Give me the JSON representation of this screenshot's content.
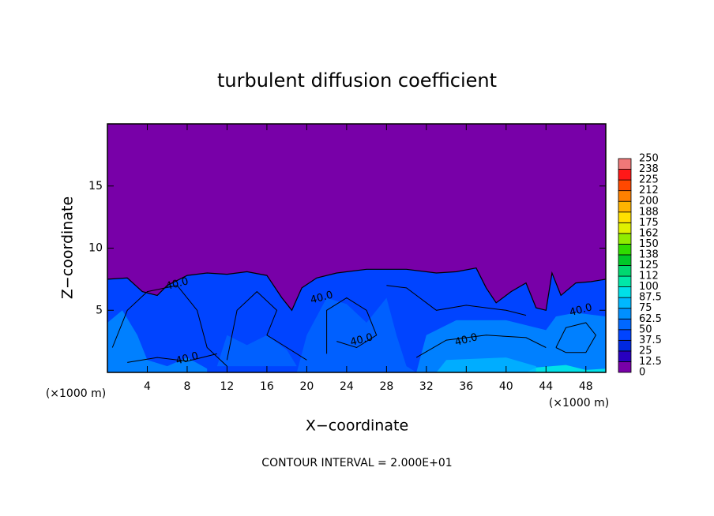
{
  "chart_data": {
    "type": "contour",
    "title": "turbulent diffusion coefficient",
    "xlabel": "X−coordinate",
    "ylabel": "Z−coordinate",
    "x_unit": "(×1000 m)",
    "x_unit_right": "(×1000 m)",
    "footer": "CONTOUR INTERVAL = 2.000E+01",
    "xlim": [
      0,
      50
    ],
    "ylim": [
      0,
      20
    ],
    "xticks": [
      4,
      8,
      12,
      16,
      20,
      24,
      28,
      32,
      36,
      40,
      44,
      48
    ],
    "yticks": [
      5,
      10,
      15
    ],
    "contour_labels": [
      "40.0",
      "40.0",
      "40.0",
      "40.0",
      "40.0",
      "40.0"
    ],
    "colorbar": {
      "ticks": [
        0,
        12.5,
        25,
        37.5,
        50,
        62.5,
        75,
        87.5,
        100,
        {
          "value": 112.5,
          "label": "112"
        },
        125,
        {
          "value": 137.5,
          "label": "138"
        },
        150,
        {
          "value": 162.5,
          "label": "162"
        },
        175,
        {
          "value": 187.5,
          "label": "188"
        },
        200,
        {
          "value": 212.5,
          "label": "212"
        },
        225,
        {
          "value": 237.5,
          "label": "238"
        },
        250
      ],
      "colors": [
        "#7800a8",
        "#2800c0",
        "#0028e0",
        "#0044ff",
        "#0068ff",
        "#0090ff",
        "#00b8ff",
        "#00e0e8",
        "#00e8a8",
        "#00d870",
        "#00c828",
        "#30dc00",
        "#90ec00",
        "#e0f000",
        "#ffe000",
        "#ffb400",
        "#ff8000",
        "#ff4800",
        "#ff1818",
        "#f07878"
      ]
    }
  }
}
